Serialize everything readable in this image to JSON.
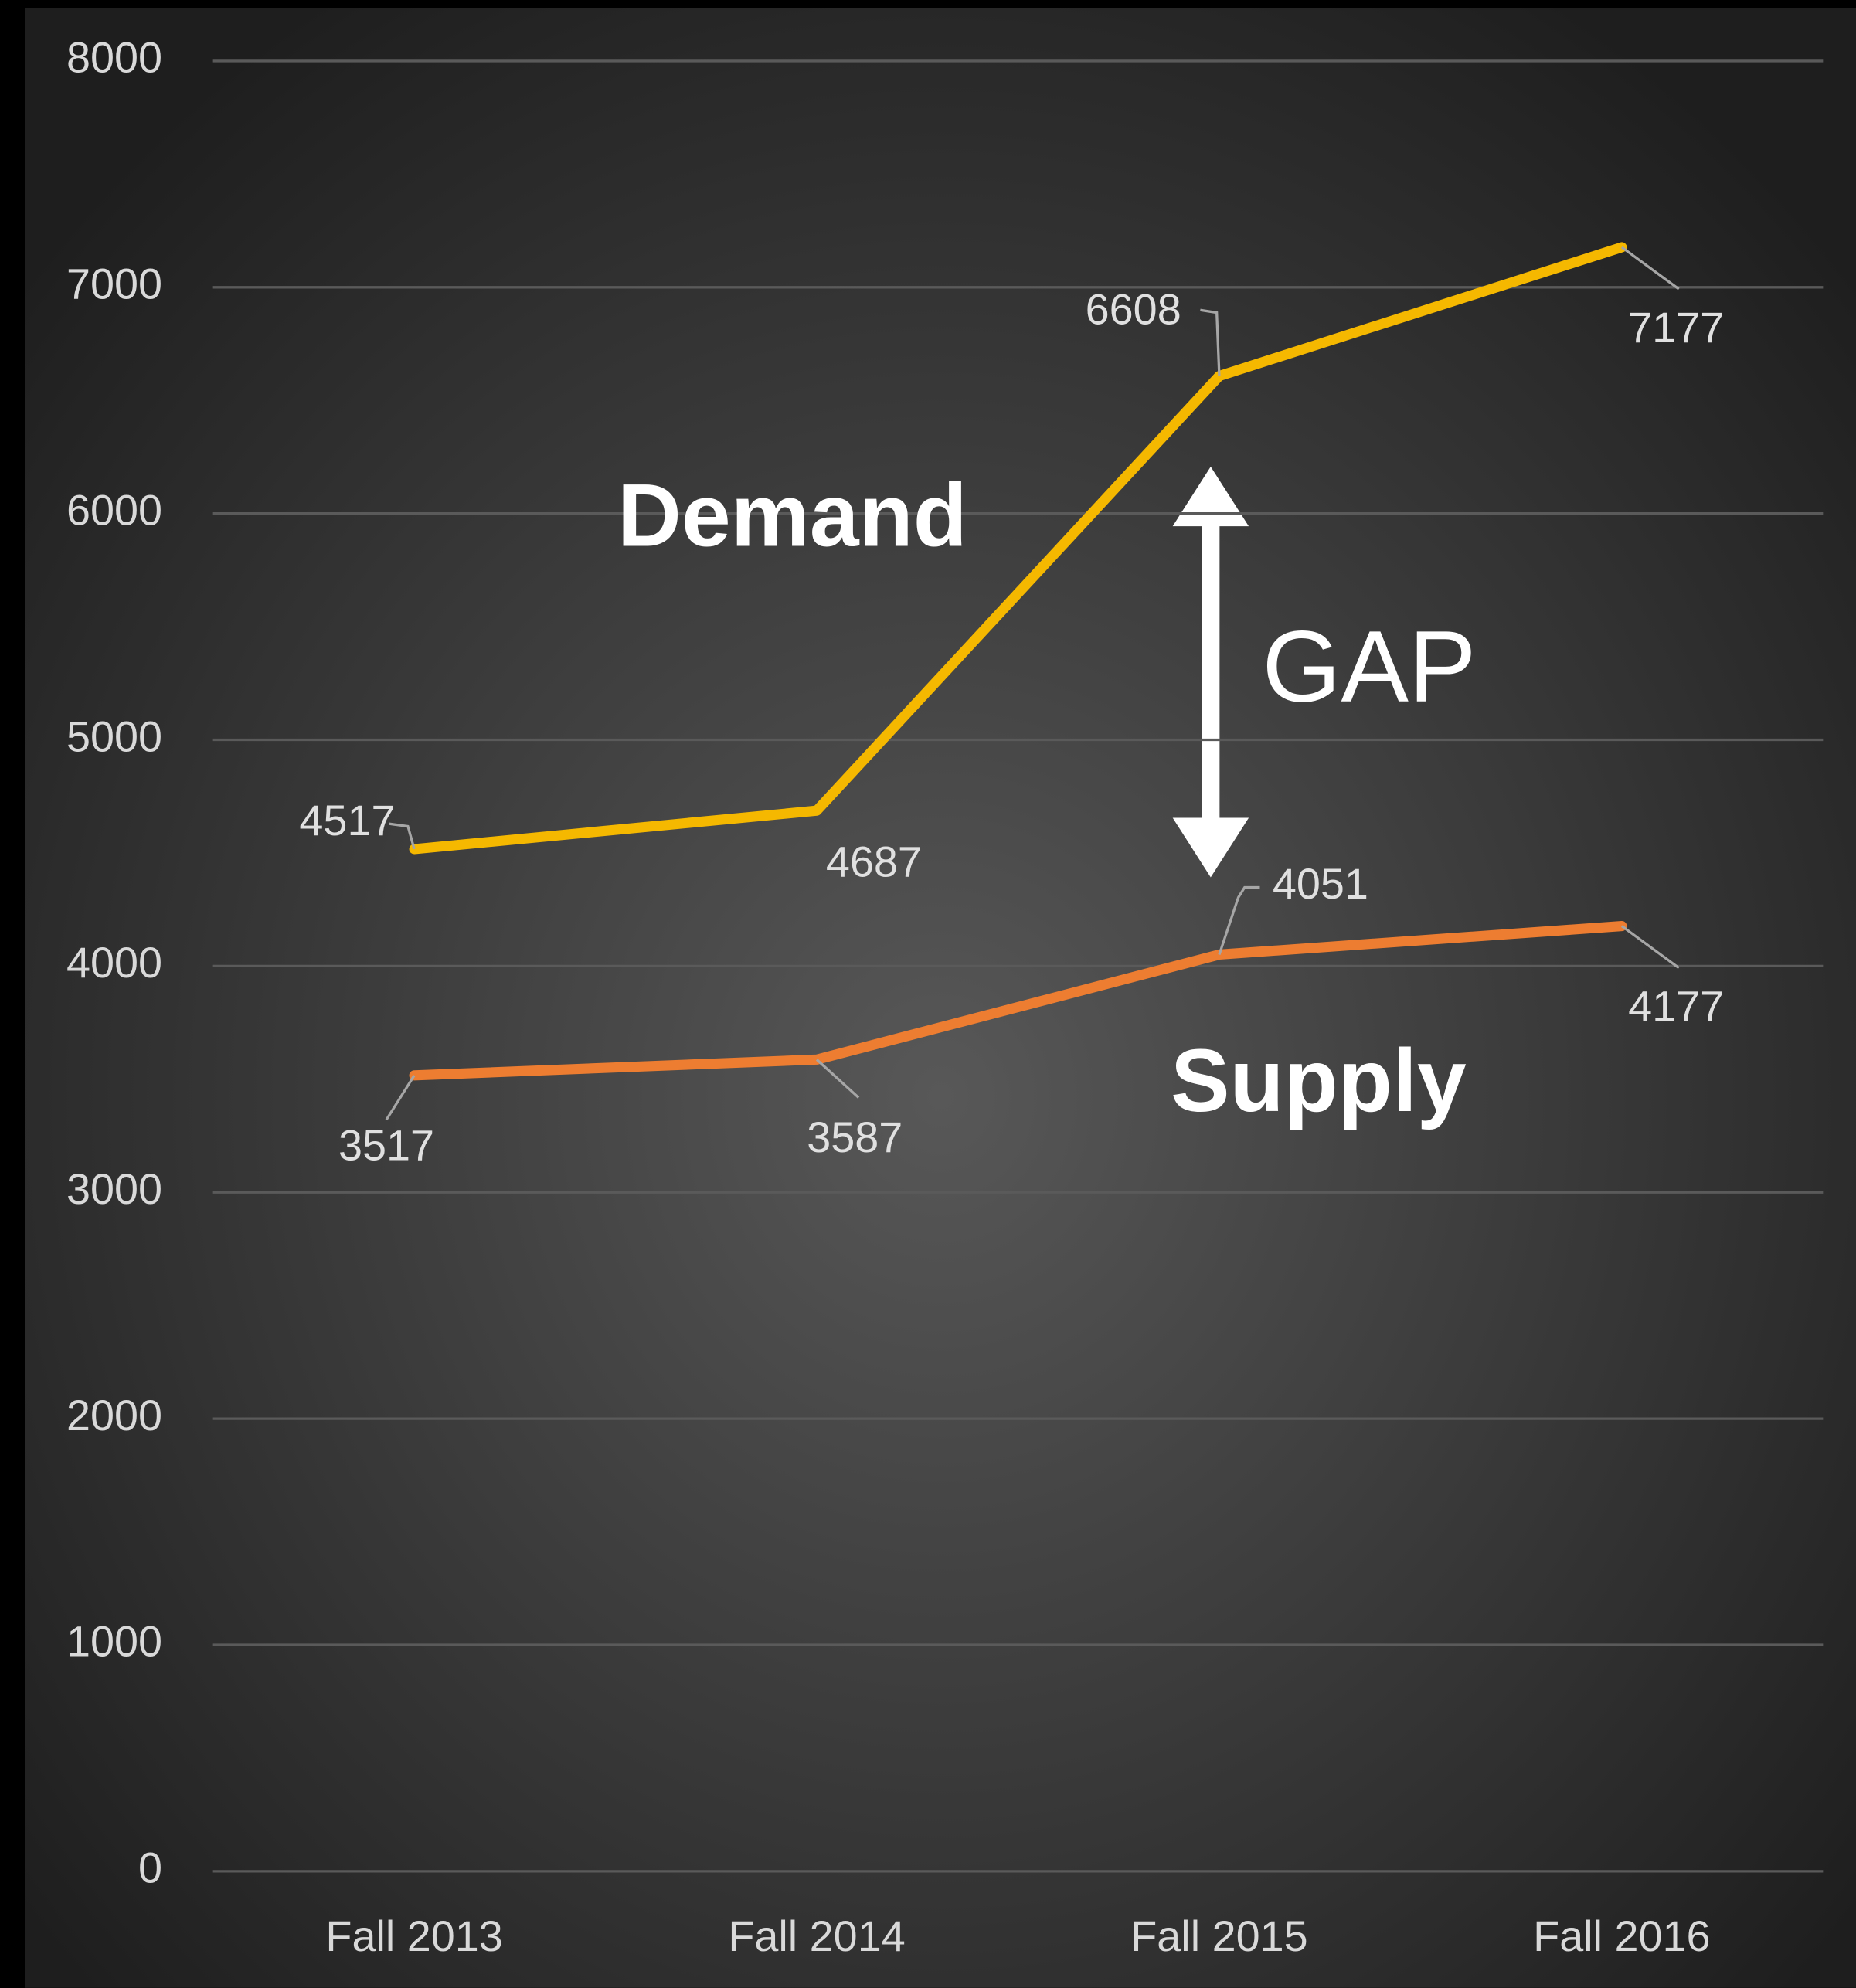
{
  "chart_data": {
    "type": "line",
    "categories": [
      "Fall 2013",
      "Fall 2014",
      "Fall 2015",
      "Fall 2016"
    ],
    "series": [
      {
        "name": "Demand",
        "color": "#f5b800",
        "values": [
          4517,
          4687,
          6608,
          7177
        ]
      },
      {
        "name": "Supply",
        "color": "#ed7d31",
        "values": [
          3517,
          3587,
          4051,
          4177
        ]
      }
    ],
    "annotations": [
      "GAP"
    ],
    "ylim": [
      0,
      8000
    ],
    "yticks": [
      0,
      1000,
      2000,
      3000,
      4000,
      5000,
      6000,
      7000,
      8000
    ],
    "grid": true
  }
}
